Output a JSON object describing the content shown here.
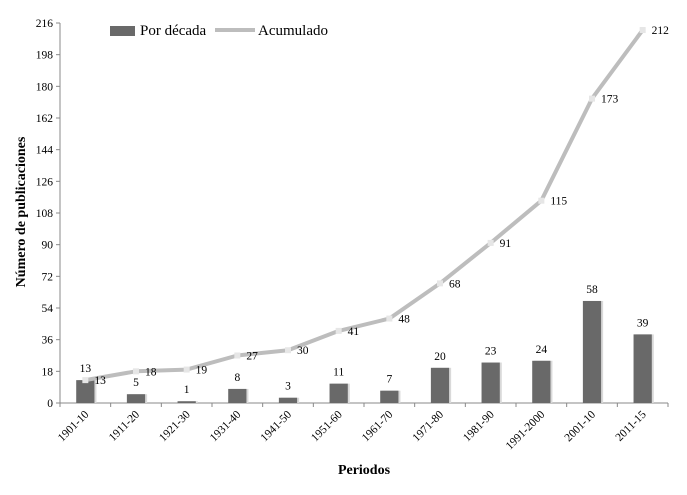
{
  "chart_data": {
    "type": "bar+line",
    "title": "",
    "xlabel": "Periodos",
    "ylabel": "Número de publicaciones",
    "ylim": [
      0,
      216
    ],
    "yticks": [
      0,
      18,
      36,
      54,
      72,
      90,
      108,
      126,
      144,
      162,
      180,
      198,
      216
    ],
    "categories": [
      "1901-10",
      "1911-20",
      "1921-30",
      "1931-40",
      "1941-50",
      "1951-60",
      "1961-70",
      "1971-80",
      "1981-90",
      "1991-2000",
      "2001-10",
      "2011-15"
    ],
    "series": [
      {
        "name": "Por década",
        "type": "bar",
        "color": "#696969",
        "values": [
          13,
          5,
          1,
          8,
          3,
          11,
          7,
          20,
          23,
          24,
          58,
          39
        ]
      },
      {
        "name": "Acumulado",
        "type": "line",
        "color": "#bdbdbd",
        "values": [
          13,
          18,
          19,
          27,
          30,
          41,
          48,
          68,
          91,
          115,
          173,
          212
        ]
      }
    ],
    "legend_position": "top-left",
    "grid": false
  }
}
